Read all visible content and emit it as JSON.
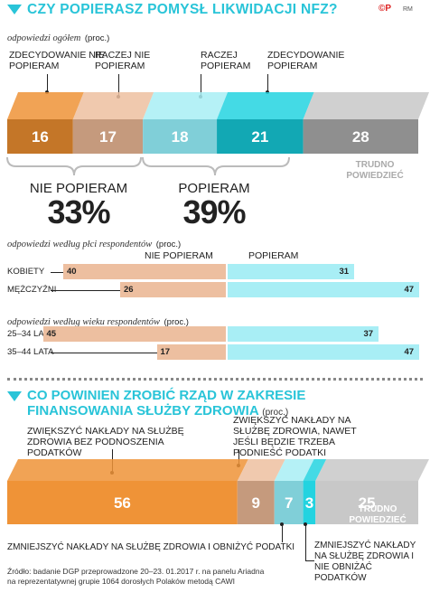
{
  "header": {
    "title": "CZY POPIERASZ POMYSŁ LIKWIDACJI NFZ?",
    "logo": "©P",
    "logo_small": "RM"
  },
  "section1": {
    "subtitle": "odpowiedzi ogółem",
    "unit": "(proc.)",
    "labels": {
      "zdecydowanie_nie": "ZDECYDOWANIE NIE POPIERAM",
      "raczej_nie": "RACZEJ NIE POPIERAM",
      "raczej_popieram": "RACZEJ POPIERAM",
      "zdecydowanie_popieram": "ZDECYDOWANIE POPIERAM",
      "trudno": "TRUDNO POWIEDZIEĆ"
    },
    "group_nie": {
      "label": "NIE POPIERAM",
      "value": "33%"
    },
    "group_tak": {
      "label": "POPIERAM",
      "value": "39%"
    }
  },
  "section_gender": {
    "subtitle": "odpowiedzi według płci respondentów",
    "unit": "(proc.)",
    "col_nie": "NIE POPIERAM",
    "col_tak": "POPIERAM",
    "rows": [
      {
        "label": "KOBIETY",
        "nie": "40",
        "tak": "31"
      },
      {
        "label": "MĘŻCZYŹNI",
        "nie": "26",
        "tak": "47"
      }
    ]
  },
  "section_age": {
    "subtitle": "odpowiedzi według wieku respondentów",
    "unit": "(proc.)",
    "rows": [
      {
        "label": "25–34 LATA",
        "nie": "45",
        "tak": "37"
      },
      {
        "label": "35–44 LATA",
        "nie": "17",
        "tak": "47"
      }
    ]
  },
  "section2": {
    "title": "CO POWINIEN ZROBIĆ RZĄD W ZAKRESIE FINANSOWANIA SŁUŻBY ZDROWIA",
    "unit": "(proc.)",
    "labels": {
      "a": "ZWIĘKSZYĆ NAKŁADY NA SŁUŻBĘ ZDROWIA BEZ PODNOSZENIA PODATKÓW",
      "b": "ZWIĘKSZYĆ NAKŁADY NA SŁUŻBĘ ZDROWIA, NAWET JEŚLI BĘDZIE TRZEBA PODNIEŚĆ PODATKI",
      "c": "ZMNIEJSZYĆ NAKŁADY NA SŁUŻBĘ ZDROWIA I OBNIŻYĆ PODATKI",
      "d": "ZMNIEJSZYĆ NAKŁADY NA SŁUŻBĘ ZDROWIA I NIE OBNIŻAĆ PODATKÓW",
      "trudno": "TRUDNO POWIEDZIEĆ"
    }
  },
  "footer": {
    "line1": "Źródło: badanie DGP przeprowadzone 20–23. 01.2017 r. na panelu Ariadna",
    "line2": "na reprezentatywnej grupie 1064 dorosłych Polaków metodą CAWI"
  },
  "colors": {
    "orange": "#ef9337",
    "orange_dark": "#c47628",
    "peach": "#edbfa0",
    "peach_dark": "#c59a7d",
    "lightblue": "#a8eef5",
    "lightblue_dark": "#80cfd8",
    "cyan": "#23d3e0",
    "cyan_dark": "#12a8b4",
    "gray": "#c8c8c8",
    "gray_dark": "#8f8f8f",
    "accent": "#29c4d8"
  },
  "chart_data": [
    {
      "type": "bar",
      "title": "CZY POPIERASZ POMYSŁ LIKWIDACJI NFZ?",
      "subtitle": "odpowiedzi ogółem (proc.)",
      "categories": [
        "ZDECYDOWANIE NIE POPIERAM",
        "RACZEJ NIE POPIERAM",
        "RACZEJ POPIERAM",
        "ZDECYDOWANIE POPIERAM",
        "TRUDNO POWIEDZIEĆ"
      ],
      "values": [
        16,
        17,
        18,
        21,
        28
      ]
    },
    {
      "type": "bar",
      "subtitle": "odpowiedzi według płci respondentów (proc.)",
      "categories": [
        "KOBIETY",
        "MĘŻCZYŹNI"
      ],
      "series": [
        {
          "name": "NIE POPIERAM",
          "values": [
            40,
            26
          ]
        },
        {
          "name": "POPIERAM",
          "values": [
            31,
            47
          ]
        }
      ]
    },
    {
      "type": "bar",
      "subtitle": "odpowiedzi według wieku respondentów (proc.)",
      "categories": [
        "25–34 LATA",
        "35–44 LATA"
      ],
      "series": [
        {
          "name": "NIE POPIERAM",
          "values": [
            45,
            17
          ]
        },
        {
          "name": "POPIERAM",
          "values": [
            37,
            47
          ]
        }
      ]
    },
    {
      "type": "bar",
      "title": "CO POWINIEN ZROBIĆ RZĄD W ZAKRESIE FINANSOWANIA SŁUŻBY ZDROWIA",
      "subtitle": "(proc.)",
      "categories": [
        "ZWIĘKSZYĆ NAKŁADY NA SŁUŻBĘ ZDROWIA BEZ PODNOSZENIA PODATKÓW",
        "ZWIĘKSZYĆ NAKŁADY NA SŁUŻBĘ ZDROWIA, NAWET JEŚLI BĘDZIE TRZEBA PODNIEŚĆ PODATKI",
        "ZMNIEJSZYĆ NAKŁADY NA SŁUŻBĘ ZDROWIA I OBNIŻYĆ PODATKI",
        "ZMNIEJSZYĆ NAKŁADY NA SŁUŻBĘ ZDROWIA I NIE OBNIŻAĆ PODATKÓW",
        "TRUDNO POWIEDZIEĆ"
      ],
      "values": [
        56,
        9,
        7,
        3,
        25
      ]
    }
  ]
}
